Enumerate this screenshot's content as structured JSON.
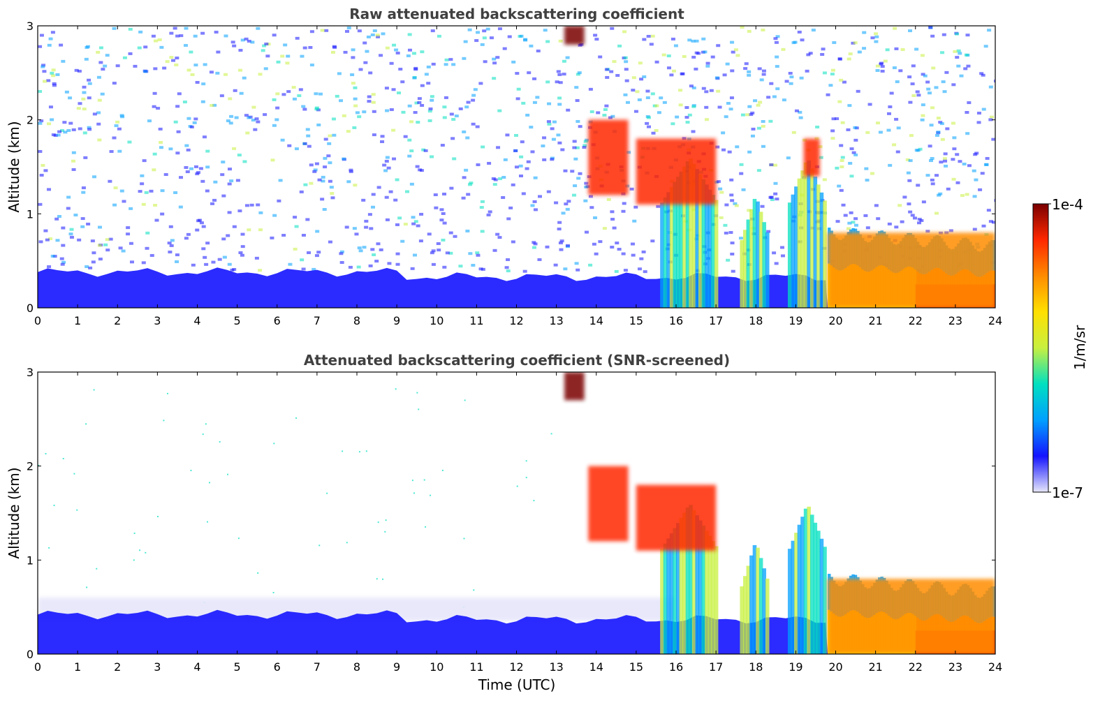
{
  "figure": {
    "colorbar": {
      "label": "1/m/sr",
      "max_label": "1e-4",
      "min_label": "1e-7",
      "min_value": 1e-07,
      "max_value": 0.0001,
      "scale": "log",
      "colormap": "jet",
      "colors": [
        "#e6e6fa",
        "#1414ff",
        "#00a0ff",
        "#00e0c0",
        "#c8f040",
        "#ffe000",
        "#ff8c00",
        "#ff2800",
        "#7a0000"
      ]
    }
  },
  "chart_data": [
    {
      "type": "heatmap",
      "title": "Raw attenuated backscattering coefficient",
      "xlabel": "",
      "ylabel": "Altitude (km)",
      "xlim": [
        0,
        24
      ],
      "ylim": [
        0,
        3
      ],
      "x_ticks": [
        "0",
        "1",
        "2",
        "3",
        "4",
        "5",
        "6",
        "7",
        "8",
        "9",
        "10",
        "11",
        "12",
        "13",
        "14",
        "15",
        "16",
        "17",
        "18",
        "19",
        "20",
        "21",
        "22",
        "23",
        "24"
      ],
      "y_ticks": [
        "0",
        "1",
        "2",
        "3"
      ],
      "grid": false,
      "features": [
        {
          "x": [
            0,
            9
          ],
          "y": [
            0,
            0.4
          ],
          "level": "low (blue)"
        },
        {
          "x": [
            13.2,
            13.7
          ],
          "y": [
            2.8,
            3.0
          ],
          "level": "high (dark red)"
        },
        {
          "x": [
            13.8,
            14.8
          ],
          "y": [
            1.2,
            2.0
          ],
          "level": "high (red)"
        },
        {
          "x": [
            15,
            17
          ],
          "y": [
            1.1,
            1.8
          ],
          "level": "high (red)"
        },
        {
          "x": [
            19.2,
            19.6
          ],
          "y": [
            1.4,
            1.8
          ],
          "level": "high (red)"
        },
        {
          "x": [
            19.8,
            24
          ],
          "y": [
            0,
            0.8
          ],
          "level": "high (orange/red)"
        }
      ]
    },
    {
      "type": "heatmap",
      "title": "Attenuated backscattering coefficient (SNR-screened)",
      "xlabel": "Time (UTC)",
      "ylabel": "Altitude (km)",
      "xlim": [
        0,
        24
      ],
      "ylim": [
        0,
        3
      ],
      "x_ticks": [
        "0",
        "1",
        "2",
        "3",
        "4",
        "5",
        "6",
        "7",
        "8",
        "9",
        "10",
        "11",
        "12",
        "13",
        "14",
        "15",
        "16",
        "17",
        "18",
        "19",
        "20",
        "21",
        "22",
        "23",
        "24"
      ],
      "y_ticks": [
        "0",
        "1",
        "2",
        "3"
      ],
      "grid": false,
      "features": [
        {
          "x": [
            0,
            9
          ],
          "y": [
            0,
            0.45
          ],
          "level": "low (blue)"
        },
        {
          "x": [
            9,
            16
          ],
          "y": [
            0,
            0.4
          ],
          "level": "low (blue)"
        },
        {
          "x": [
            13.2,
            13.7
          ],
          "y": [
            2.7,
            3.0
          ],
          "level": "high (dark red)"
        },
        {
          "x": [
            13.8,
            14.8
          ],
          "y": [
            1.2,
            2.0
          ],
          "level": "high (red)"
        },
        {
          "x": [
            15,
            17
          ],
          "y": [
            1.1,
            1.8
          ],
          "level": "high (red)"
        },
        {
          "x": [
            19.8,
            24
          ],
          "y": [
            0,
            0.8
          ],
          "level": "high (orange/red)"
        }
      ]
    }
  ]
}
